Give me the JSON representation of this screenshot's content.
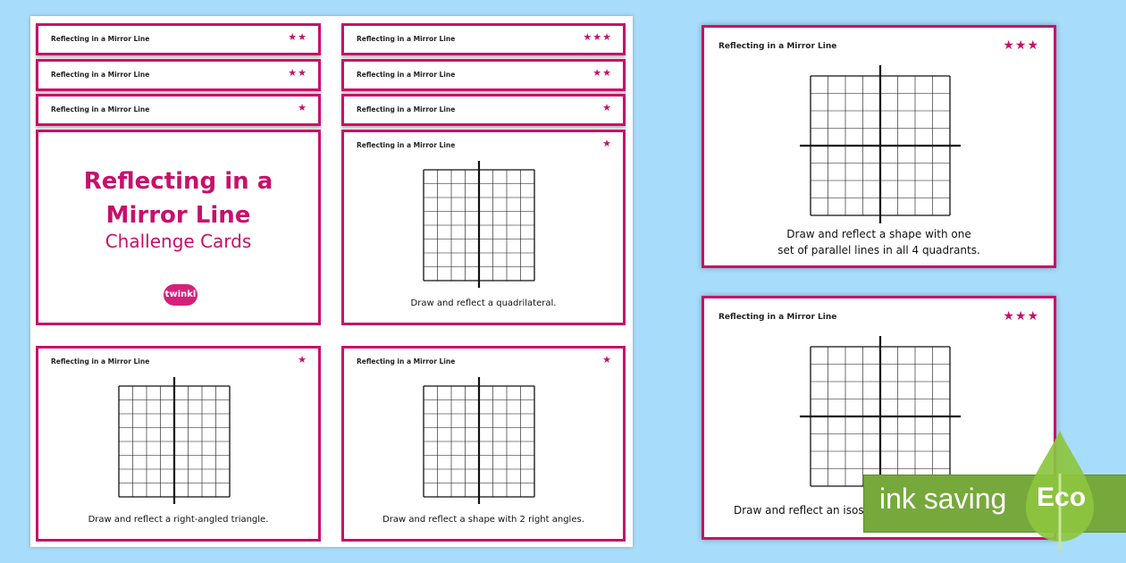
{
  "card_header": "Reflecting in a Mirror Line",
  "cover": {
    "title_line1": "Reflecting in a",
    "title_line2": "Mirror Line",
    "subtitle": "Challenge Cards",
    "logo": "twinkl"
  },
  "stacked_cards": [
    {
      "stars": "★★"
    },
    {
      "stars": "★★★"
    },
    {
      "stars": "★★"
    },
    {
      "stars": "★★"
    },
    {
      "stars": "★"
    },
    {
      "stars": "★"
    }
  ],
  "cards": [
    {
      "stars": "★",
      "caption": "Draw and reflect a quadrilateral.",
      "grid": "vertical-mirror"
    },
    {
      "stars": "★",
      "caption": "Draw and reflect a right-angled triangle.",
      "grid": "vertical-mirror"
    },
    {
      "stars": "★",
      "caption": "Draw and reflect a shape with 2 right angles.",
      "grid": "vertical-mirror"
    },
    {
      "stars": "★★★",
      "caption_line1": "Draw and reflect a shape with one",
      "caption_line2": "set of parallel lines in all 4 quadrants.",
      "grid": "four-quadrants"
    },
    {
      "stars": "★★★",
      "caption": "Draw and reflect an isosc",
      "grid": "four-quadrants"
    }
  ],
  "badge": {
    "text": "ink saving",
    "word": "Eco"
  },
  "colors": {
    "accent": "#c8106a",
    "background": "#a8dcfb",
    "eco_green": "#77a83c",
    "leaf": "#8dc63f"
  }
}
